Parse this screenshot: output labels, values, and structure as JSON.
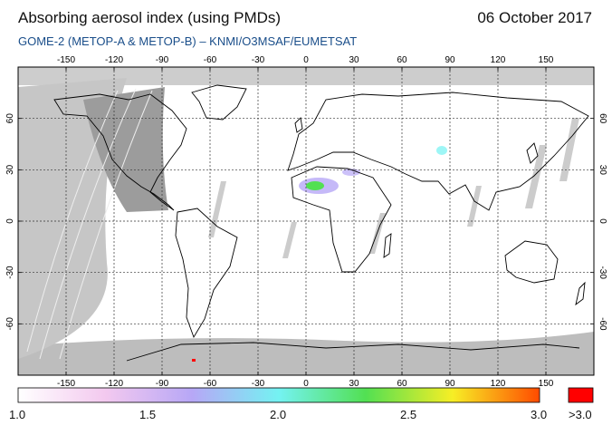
{
  "header": {
    "title": "Absorbing aerosol index (using PMDs)",
    "date": "06 October 2017",
    "subtitle": "GOME-2 (METOP-A & METOP-B)  –  KNMI/O3MSAF/EUMETSAT"
  },
  "map": {
    "lon_range": [
      -180,
      180
    ],
    "lat_range": [
      -90,
      90
    ],
    "lon_ticks": [
      "-150",
      "-120",
      "-90",
      "-60",
      "-30",
      "0",
      "30",
      "60",
      "90",
      "120",
      "150"
    ],
    "lat_ticks": [
      "60",
      "30",
      "0",
      "-30",
      "-60"
    ],
    "lat_ticks_right": [
      "60",
      "30",
      "0",
      "-30",
      "-60"
    ],
    "grid": "dashed",
    "background_color": "#ffffff",
    "no_data_color": "#c8c8c8",
    "night_color": "#a6a6a6"
  },
  "colorbar": {
    "labels": [
      "1.0",
      "1.5",
      "2.0",
      "2.5",
      "3.0"
    ],
    "over_label": ">3.0",
    "over_color": "#ff0000",
    "range": [
      1.0,
      3.0
    ],
    "stops": [
      "#ffffff",
      "#f3c9ef",
      "#b7a7f6",
      "#74f2f2",
      "#52e052",
      "#f7ee25",
      "#ff4b00"
    ]
  }
}
